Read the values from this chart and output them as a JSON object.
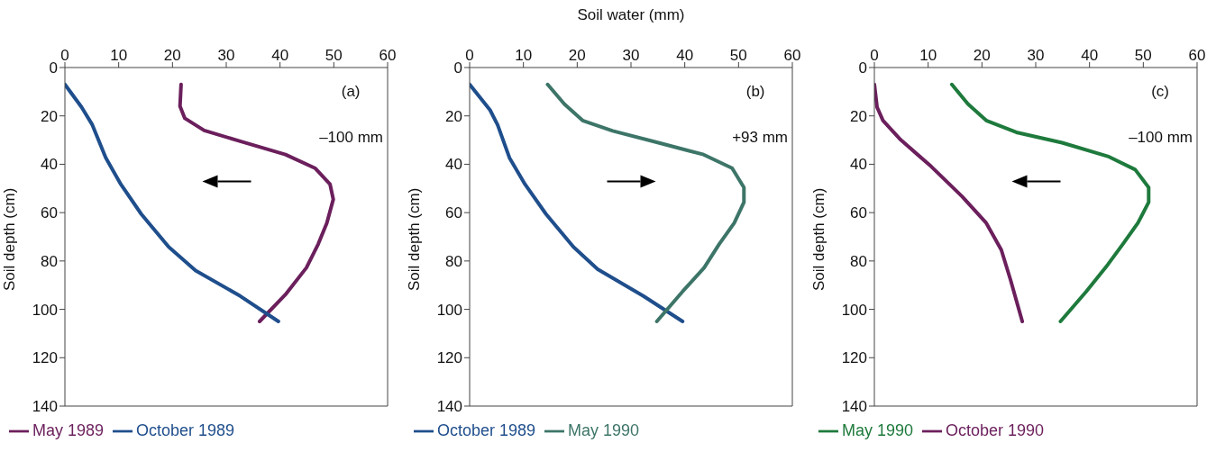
{
  "chart_data": [
    {
      "type": "line",
      "ylabel": "Soil depth (cm)",
      "xlim": [
        0,
        60
      ],
      "xticks": [
        0,
        10,
        20,
        30,
        40,
        50,
        60
      ],
      "ylim": [
        140,
        0
      ],
      "yticks": [
        0,
        20,
        40,
        60,
        80,
        100,
        120,
        140
      ],
      "legend": "bottom left",
      "grid": false,
      "annotations": [
        "(a)",
        "–100 mm"
      ],
      "series": [
        {
          "name": "May 1989",
          "color": "#6b1f5c",
          "x": [
            21.6,
            21.4,
            22.3,
            25.9,
            32.6,
            41,
            46.5,
            49.3,
            49.9,
            48.7,
            47.1,
            44.9,
            41,
            36.2
          ],
          "values": [
            7,
            16,
            21,
            26,
            30.5,
            36,
            41.6,
            48.3,
            54.5,
            64.3,
            73,
            82.8,
            93.9,
            105
          ]
        },
        {
          "name": "October 1989",
          "color": "#1f4e8c",
          "x": [
            0,
            3.1,
            5.1,
            7.6,
            10.4,
            14.2,
            19.3,
            24.3,
            32.6,
            39.7
          ],
          "values": [
            7,
            16.4,
            23.7,
            37.3,
            48.3,
            60.6,
            74.2,
            84,
            94.5,
            105
          ]
        }
      ]
    },
    {
      "type": "line",
      "xlabel": "Soil water (mm)",
      "ylabel": "Soil depth (cm)",
      "xlim": [
        0,
        60
      ],
      "xticks": [
        0,
        10,
        20,
        30,
        40,
        50,
        60
      ],
      "ylim": [
        140,
        0
      ],
      "yticks": [
        0,
        20,
        40,
        60,
        80,
        100,
        120,
        140
      ],
      "legend": "bottom left",
      "grid": false,
      "annotations": [
        "(b)",
        "+93 mm"
      ],
      "series": [
        {
          "name": "October 1989",
          "color": "#1f4e8c",
          "x": [
            0,
            3.8,
            5.2,
            7.4,
            10.3,
            14.2,
            19.3,
            23.8,
            32.3,
            39.6
          ],
          "values": [
            7,
            17.6,
            23.7,
            37.3,
            48.3,
            60.6,
            74.2,
            83.4,
            94.5,
            105
          ]
        },
        {
          "name": "May 1990",
          "color": "#3d7568",
          "x": [
            14.5,
            17.6,
            21,
            26.6,
            35.1,
            43.5,
            48.8,
            51,
            51,
            49.2,
            46.4,
            43.6,
            39.6,
            34.8
          ],
          "values": [
            7,
            15.1,
            21.9,
            26.2,
            31.1,
            36,
            41.6,
            49.6,
            55.7,
            64.3,
            73,
            82.8,
            92.6,
            105
          ]
        }
      ]
    },
    {
      "type": "line",
      "ylabel": "Soil depth (cm)",
      "xlim": [
        0,
        60
      ],
      "xticks": [
        0,
        10,
        20,
        30,
        40,
        50,
        60
      ],
      "ylim": [
        140,
        0
      ],
      "yticks": [
        0,
        20,
        40,
        60,
        80,
        100,
        120,
        140
      ],
      "legend": "bottom left",
      "grid": false,
      "annotations": [
        "(c)",
        "–100 mm"
      ],
      "series": [
        {
          "name": "May 1990",
          "color": "#1e7a3c",
          "x": [
            14.4,
            17.4,
            20.8,
            26.4,
            34.9,
            43.4,
            48.5,
            51,
            51,
            49,
            46.2,
            43.4,
            39.4,
            34.6
          ],
          "values": [
            7,
            15.1,
            21.9,
            26.8,
            31.1,
            36.7,
            42.2,
            49.6,
            55.7,
            64.3,
            73,
            81.5,
            92.6,
            105
          ]
        },
        {
          "name": "October 1990",
          "color": "#6b1f5c",
          "x": [
            0,
            0.5,
            1.6,
            4.9,
            10.6,
            16.3,
            20.8,
            23.6,
            25.3,
            27.5
          ],
          "values": [
            7,
            16.4,
            21.9,
            29.9,
            41,
            53.3,
            64.3,
            75.4,
            87.7,
            105
          ]
        }
      ]
    }
  ]
}
